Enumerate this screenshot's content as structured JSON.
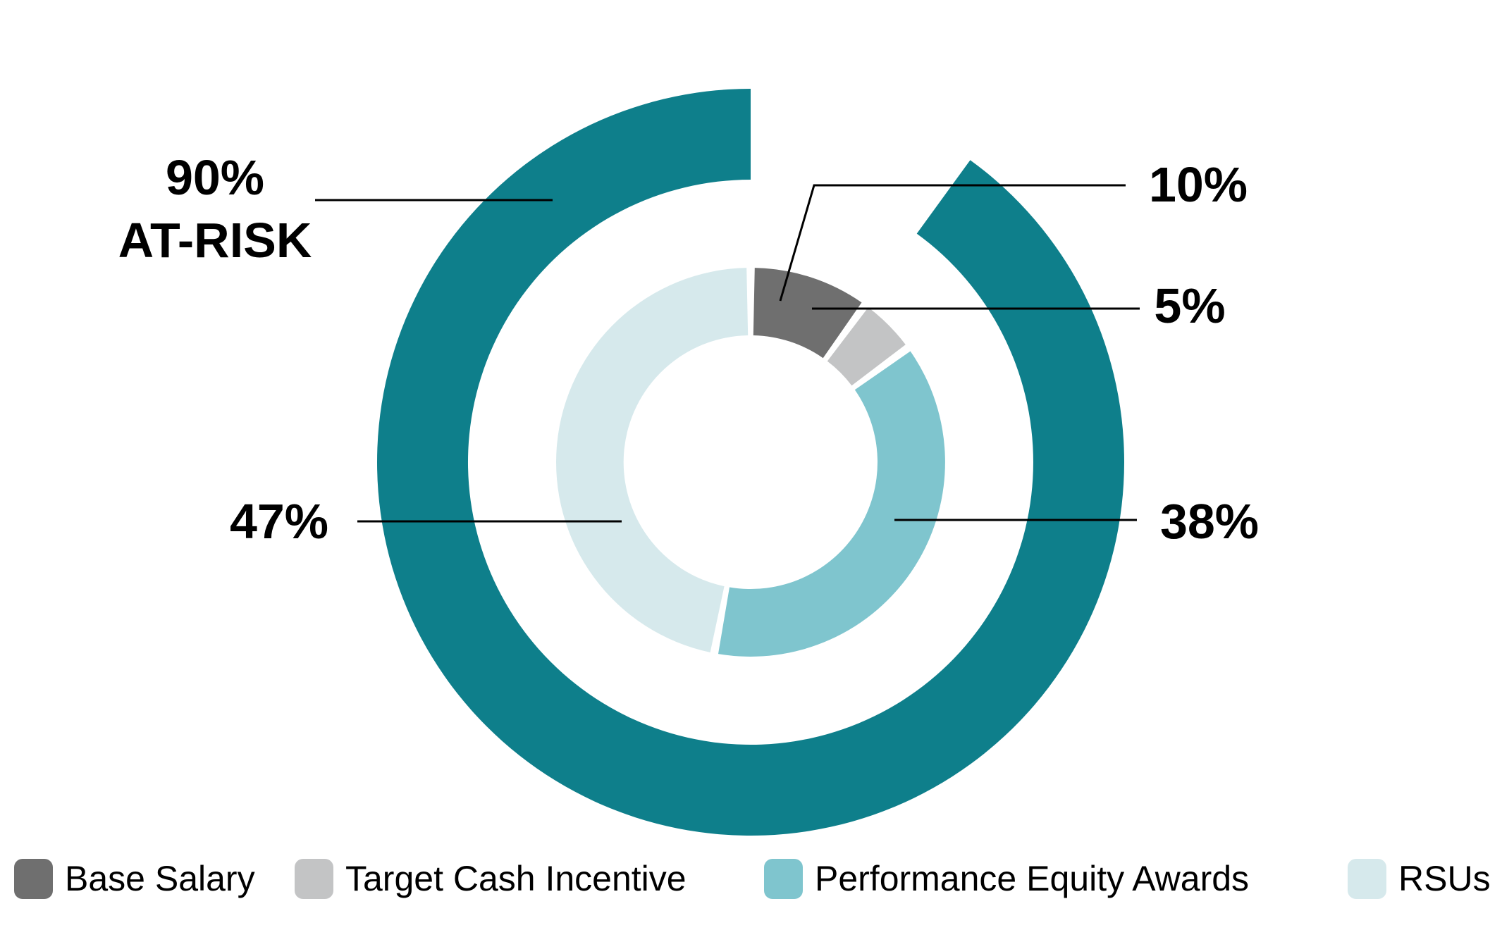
{
  "chart_data": {
    "type": "donut",
    "units": "percent",
    "direction": "clockwise",
    "start_angle_deg": 0,
    "legend_position": "bottom",
    "series": [
      {
        "label": "Base Salary",
        "value": 10,
        "color": "#6f6f6f",
        "callout": "10%"
      },
      {
        "label": "Target Cash Incentive",
        "value": 5,
        "color": "#c3c4c5",
        "callout": "5%"
      },
      {
        "label": "Performance Equity Awards",
        "value": 38,
        "color": "#7fc5ce",
        "callout": "38%"
      },
      {
        "label": "RSUs",
        "value": 47,
        "color": "#d6e9ec",
        "callout": "47%"
      }
    ],
    "outer_ring": {
      "value": 90,
      "color": "#0e7f8b",
      "callout_line1": "90%",
      "callout_line2": "AT-RISK",
      "gap_aligned_with": "Base Salary"
    }
  }
}
